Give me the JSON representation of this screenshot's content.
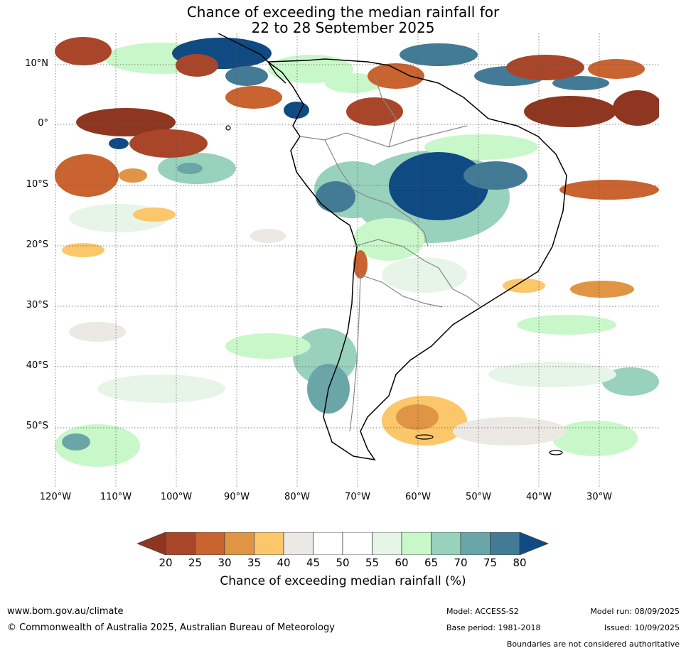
{
  "title": {
    "line1": "Chance of exceeding the median rainfall for",
    "line2": "22 to 28 September 2025"
  },
  "map": {
    "lat_ticks": [
      "10°N",
      "0°",
      "10°S",
      "20°S",
      "30°S",
      "40°S",
      "50°S"
    ],
    "lon_ticks": [
      "120°W",
      "110°W",
      "100°W",
      "90°W",
      "80°W",
      "70°W",
      "60°W",
      "50°W",
      "40°W",
      "30°W"
    ],
    "colors": {
      "coast": "#000000",
      "borders": "#888888",
      "grid": "#555555"
    }
  },
  "colorbar": {
    "labels": [
      "20",
      "25",
      "30",
      "35",
      "40",
      "45",
      "50",
      "55",
      "60",
      "65",
      "70",
      "75",
      "80"
    ],
    "colors": [
      "#8f3620",
      "#a94629",
      "#c9632f",
      "#df9544",
      "#fbc76a",
      "#ece9e4",
      "#ffffff",
      "#ffffff",
      "#e7f5e9",
      "#c8f8c9",
      "#98d1bc",
      "#6aa6a8",
      "#437b96",
      "#0f4b82"
    ],
    "title": "Chance of exceeding median rainfall (%)"
  },
  "footer": {
    "website": "www.bom.gov.au/climate",
    "copyright": "© Commonwealth of Australia 2025, Australian Bureau of Meteorology",
    "model": "Model: ACCESS-S2",
    "base_period": "Base period: 1981-2018",
    "model_run": "Model run: 08/09/2025",
    "issued": "Issued: 10/09/2025",
    "disclaimer": "Boundaries are not considered authoritative"
  }
}
